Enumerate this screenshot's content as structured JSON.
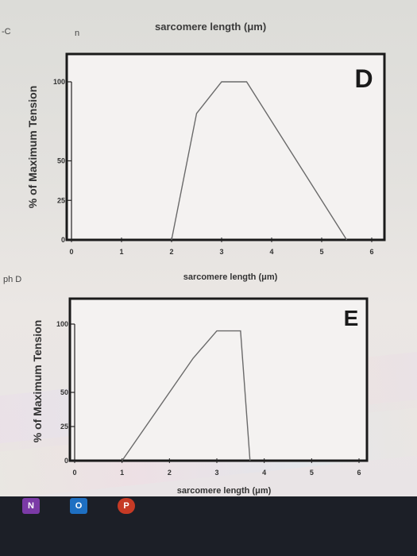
{
  "page": {
    "top_title": "sarcomere length (μm)",
    "fragments": {
      "left_top": "-C",
      "mid_top": "n",
      "left_mid": "ph D"
    },
    "taskbar_icons": [
      {
        "label": "N",
        "color": "#7b3aa6"
      },
      {
        "label": "O",
        "color": "#1e6fc2"
      },
      {
        "label": "P",
        "color": "#c63a25"
      }
    ]
  },
  "chart_data": [
    {
      "type": "line",
      "panel_letter": "D",
      "xlabel": "sarcomere length (μm)",
      "ylabel": "% of Maximum Tension",
      "xlim": [
        0,
        6
      ],
      "ylim": [
        0,
        100
      ],
      "x_ticks": [
        "0",
        "1",
        "2",
        "3",
        "4",
        "5",
        "6"
      ],
      "y_ticks": [
        "0",
        "25",
        "50",
        "100"
      ],
      "y_tick_values": [
        0,
        25,
        50,
        100
      ],
      "grid": false,
      "series": [
        {
          "x": [
            2.0,
            2.5,
            3.0,
            3.5,
            5.5
          ],
          "y": [
            0,
            80,
            100,
            100,
            0
          ]
        }
      ]
    },
    {
      "type": "line",
      "panel_letter": "E",
      "xlabel": "sarcomere length (μm)",
      "ylabel": "% of Maximum Tension",
      "xlim": [
        0,
        6
      ],
      "ylim": [
        0,
        100
      ],
      "x_ticks": [
        "0",
        "1",
        "2",
        "3",
        "4",
        "5",
        "6"
      ],
      "y_ticks": [
        "0",
        "25",
        "50",
        "100"
      ],
      "y_tick_values": [
        0,
        25,
        50,
        100
      ],
      "grid": false,
      "series": [
        {
          "x": [
            1.0,
            2.5,
            3.0,
            3.5,
            3.7
          ],
          "y": [
            0,
            75,
            95,
            95,
            0
          ]
        }
      ]
    }
  ]
}
